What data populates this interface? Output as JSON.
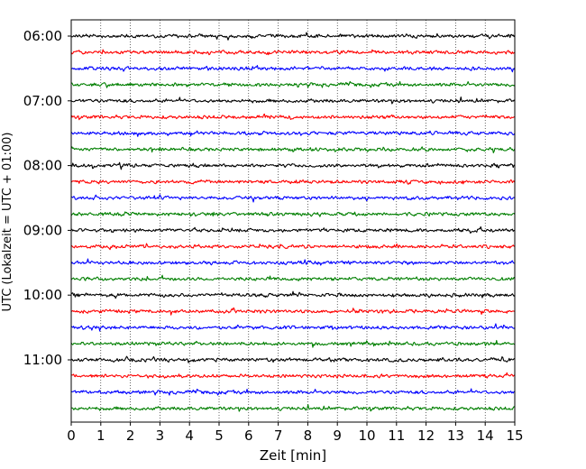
{
  "chart_data": {
    "type": "line",
    "title": "",
    "xlabel": "Zeit  [min]",
    "ylabel": "UTC (Lokalzeit = UTC + 01:00)",
    "xlim": [
      0,
      15
    ],
    "x_ticks": [
      "0",
      "1",
      "2",
      "3",
      "4",
      "5",
      "6",
      "7",
      "8",
      "9",
      "10",
      "11",
      "12",
      "13",
      "14",
      "15"
    ],
    "y_ticks": [
      "06:00",
      "07:00",
      "08:00",
      "09:00",
      "10:00",
      "11:00"
    ],
    "grid": "vertical dotted",
    "row_interval_min": 15,
    "start_time": "06:00",
    "series": [
      {
        "start": "06:00",
        "color": "#000000"
      },
      {
        "start": "06:15",
        "color": "#ff0000"
      },
      {
        "start": "06:30",
        "color": "#0000ff"
      },
      {
        "start": "06:45",
        "color": "#007f00"
      },
      {
        "start": "07:00",
        "color": "#000000"
      },
      {
        "start": "07:15",
        "color": "#ff0000"
      },
      {
        "start": "07:30",
        "color": "#0000ff"
      },
      {
        "start": "07:45",
        "color": "#007f00"
      },
      {
        "start": "08:00",
        "color": "#000000"
      },
      {
        "start": "08:15",
        "color": "#ff0000"
      },
      {
        "start": "08:30",
        "color": "#0000ff"
      },
      {
        "start": "08:45",
        "color": "#007f00"
      },
      {
        "start": "09:00",
        "color": "#000000"
      },
      {
        "start": "09:15",
        "color": "#ff0000"
      },
      {
        "start": "09:30",
        "color": "#0000ff"
      },
      {
        "start": "09:45",
        "color": "#007f00"
      },
      {
        "start": "10:00",
        "color": "#000000"
      },
      {
        "start": "10:15",
        "color": "#ff0000"
      },
      {
        "start": "10:30",
        "color": "#0000ff"
      },
      {
        "start": "10:45",
        "color": "#007f00"
      },
      {
        "start": "11:00",
        "color": "#000000"
      },
      {
        "start": "11:15",
        "color": "#ff0000"
      },
      {
        "start": "11:30",
        "color": "#0000ff"
      },
      {
        "start": "11:45",
        "color": "#007f00"
      }
    ]
  }
}
